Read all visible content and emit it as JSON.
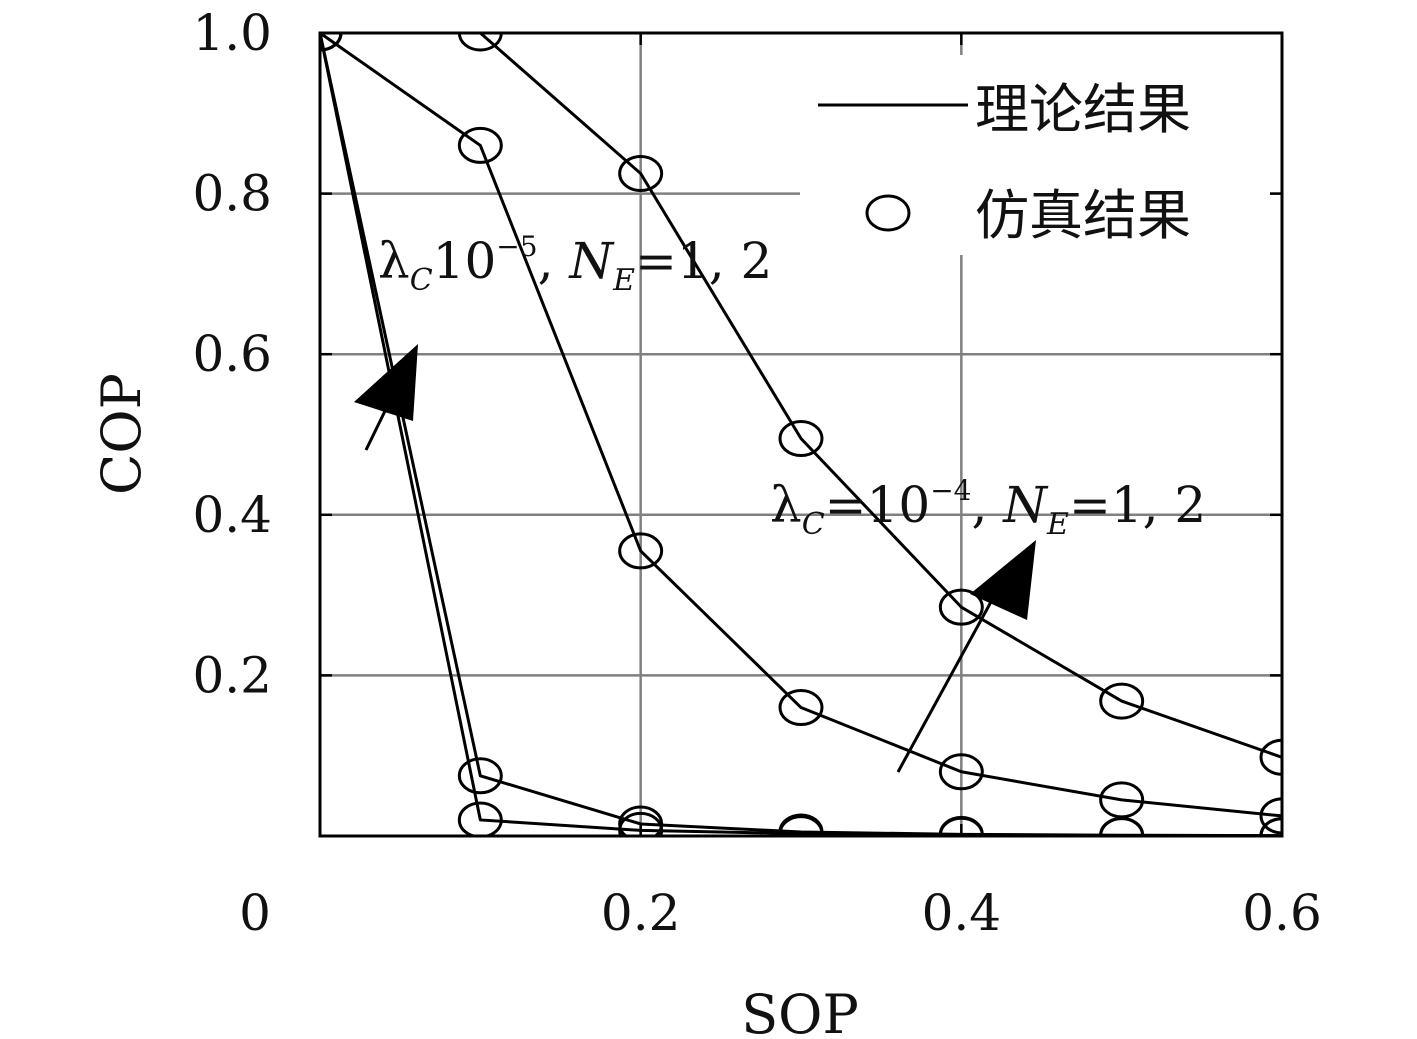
{
  "chart_data": {
    "type": "line",
    "xlabel": "SOP",
    "ylabel": "COP",
    "xlim": [
      0,
      0.6
    ],
    "ylim": [
      0,
      1.0
    ],
    "x_ticks": [
      "0",
      "0.2",
      "0.4",
      "0.6"
    ],
    "y_ticks": [
      "0.2",
      "0.4",
      "0.6",
      "0.8",
      "1.0"
    ],
    "grid": true,
    "legend": {
      "placement": "top-right",
      "entries": [
        {
          "label": "理论结果",
          "marker": "line"
        },
        {
          "label": "仿真结果",
          "marker": "circle"
        }
      ]
    },
    "x": [
      0,
      0.1,
      0.2,
      0.3,
      0.4,
      0.5,
      0.6
    ],
    "series": [
      {
        "values": [
          1.0,
          0.02,
          0.007,
          0.003,
          0.001,
          0.0005,
          0.0003
        ]
      },
      {
        "values": [
          1.0,
          0.075,
          0.015,
          0.005,
          0.002,
          0.001,
          0.0005
        ]
      },
      {
        "values": [
          1.0,
          0.86,
          0.355,
          0.16,
          0.08,
          0.045,
          0.025
        ]
      },
      {
        "values": [
          1.0,
          1.0,
          0.825,
          0.495,
          0.285,
          0.168,
          0.098
        ]
      }
    ],
    "annotations": [
      {
        "lambda": "λ",
        "lambda_sub": "C",
        "text_a": "10",
        "exp": "−5",
        "text_b": ", ",
        "n": "N",
        "n_sub": "E",
        "text_c": "=1, 2"
      },
      {
        "lambda": "λ",
        "lambda_sub": "C",
        "text_a": "=10",
        "exp": "−4",
        "text_b": ", ",
        "n": "N",
        "n_sub": "E",
        "text_c": "=1, 2"
      }
    ]
  }
}
